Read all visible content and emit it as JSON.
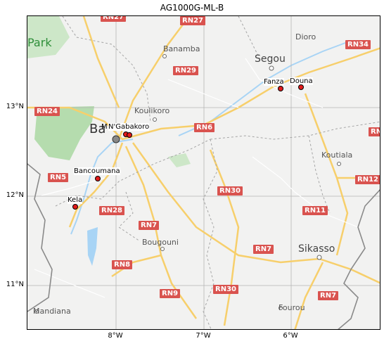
{
  "title": "AG1000G-ML-B",
  "axes": {
    "yticks": [
      "13°N",
      "12°N",
      "11°N"
    ],
    "xticks": [
      "8°W",
      "7°W",
      "6°W"
    ]
  },
  "place_labels": {
    "banamba": "Banamba",
    "segou": "Segou",
    "dioro": "Dioro",
    "koulikoro": "Koulikoro",
    "koutiala": "Koutiala",
    "bougouni": "Bougouni",
    "sikasso": "Sikasso",
    "mandiana": "Mandiana",
    "fourou": "Fourou",
    "park": "Park",
    "bamako_partial": "Ba"
  },
  "road_labels": {
    "rn27": "RN27",
    "rn29": "RN29",
    "rn34": "RN34",
    "rn24": "RN24",
    "rn6": "RN6",
    "rn5": "RN5",
    "rn30a": "RN30",
    "rn12": "RN12",
    "rn28": "RN28",
    "rn11": "RN11",
    "rn7a": "RN7",
    "rn7b": "RN7",
    "rn8": "RN8",
    "rn9": "RN9",
    "rn30b": "RN30",
    "rn7c": "RN7",
    "rn_edge": "RN"
  },
  "sites": [
    {
      "name": "Fanzana",
      "label": "Fanza"
    },
    {
      "name": "Douna",
      "label": "Douna"
    },
    {
      "name": "N'Gabakoro",
      "label": "N'Gabakoro"
    },
    {
      "name": "Bancoumana",
      "label": "Bancoumana"
    },
    {
      "name": "Kela",
      "label": "Kela"
    },
    {
      "name": "M",
      "label": "M"
    }
  ],
  "colors": {
    "site_marker": "#e21b1b",
    "road_major": "#f7cf6b",
    "road_shield": "#d9534f",
    "water": "#a8d4f5",
    "park": "#b5dcae"
  }
}
